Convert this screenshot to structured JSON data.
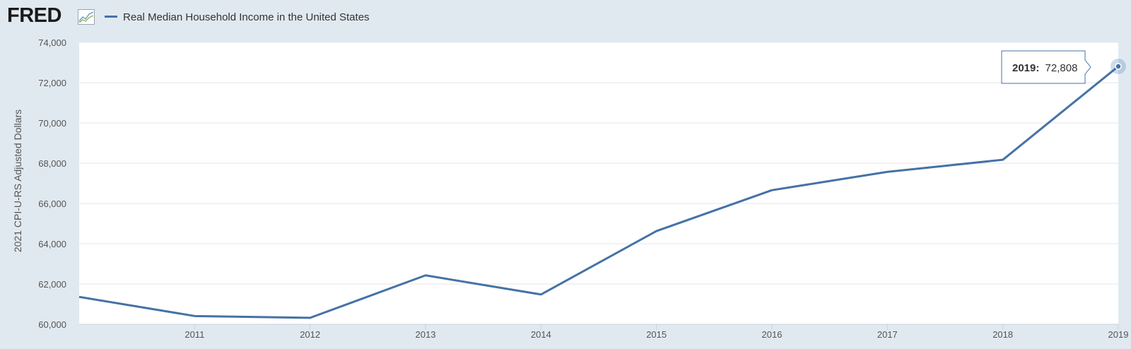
{
  "header": {
    "logo_text": "FRED",
    "logo_icon": "chart-line-icon",
    "legend_label": "Real Median Household Income in the United States",
    "series_color": "#4572a7"
  },
  "tooltip": {
    "label": "2019:",
    "value": "72,808"
  },
  "chart_data": {
    "type": "line",
    "title": "",
    "xlabel": "",
    "ylabel": "2021 CPI-U-RS Adjusted Dollars",
    "x": [
      2010,
      2011,
      2012,
      2013,
      2014,
      2015,
      2016,
      2017,
      2018,
      2019
    ],
    "xticks": [
      "2011",
      "2012",
      "2013",
      "2014",
      "2015",
      "2016",
      "2017",
      "2018",
      "2019"
    ],
    "yticks": [
      "60,000",
      "62,000",
      "64,000",
      "66,000",
      "68,000",
      "70,000",
      "72,000",
      "74,000"
    ],
    "ylim": [
      60000,
      74000
    ],
    "grid": true,
    "series": [
      {
        "name": "Real Median Household Income in the United States",
        "values": [
          61360,
          60410,
          60320,
          62430,
          61480,
          64630,
          66660,
          67570,
          68170,
          72808
        ]
      }
    ]
  }
}
